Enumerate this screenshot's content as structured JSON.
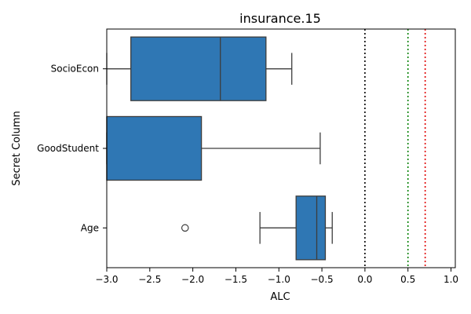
{
  "chart_data": {
    "type": "box",
    "title": "insurance.15",
    "xlabel": "ALC",
    "ylabel": "Secret Column",
    "xlim": [
      -3.0,
      1.05
    ],
    "x_ticks": [
      "−3.0",
      "−2.5",
      "−2.0",
      "−1.5",
      "−1.0",
      "−0.5",
      "0.0",
      "0.5",
      "1.0"
    ],
    "x_tick_values": [
      -3.0,
      -2.5,
      -2.0,
      -1.5,
      -1.0,
      -0.5,
      0.0,
      0.5,
      1.0
    ],
    "categories": [
      "SocioEcon",
      "GoodStudent",
      "Age"
    ],
    "boxes": [
      {
        "whisker_low": -3.0,
        "q1": -2.72,
        "median": -1.68,
        "q3": -1.15,
        "whisker_high": -0.85,
        "outliers": []
      },
      {
        "whisker_low": -3.0,
        "q1": -3.0,
        "median": -3.0,
        "q3": -1.9,
        "whisker_high": -0.52,
        "outliers": []
      },
      {
        "whisker_low": -1.22,
        "q1": -0.8,
        "median": -0.56,
        "q3": -0.46,
        "whisker_high": -0.38,
        "outliers": [
          -2.09
        ]
      }
    ],
    "reference_lines": [
      {
        "x": 0.0,
        "color": "#000000"
      },
      {
        "x": 0.5,
        "color": "#008000"
      },
      {
        "x": 0.7,
        "color": "#e00000"
      }
    ],
    "box_color": "#2f77b4",
    "edge_color": "#3d3d3d",
    "grid": false,
    "legend": "none"
  }
}
